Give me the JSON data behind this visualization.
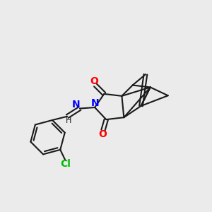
{
  "bg_color": "#ebebeb",
  "bond_color": "#1a1a1a",
  "bond_width": 1.5,
  "N_color": "#0000ff",
  "O_color": "#ff0000",
  "Cl_color": "#00bb00",
  "H_color": "#1a1a1a",
  "font_size": 10,
  "figsize": [
    3.0,
    3.0
  ],
  "dpi": 100,
  "xlim": [
    0,
    10
  ],
  "ylim": [
    0,
    10
  ]
}
